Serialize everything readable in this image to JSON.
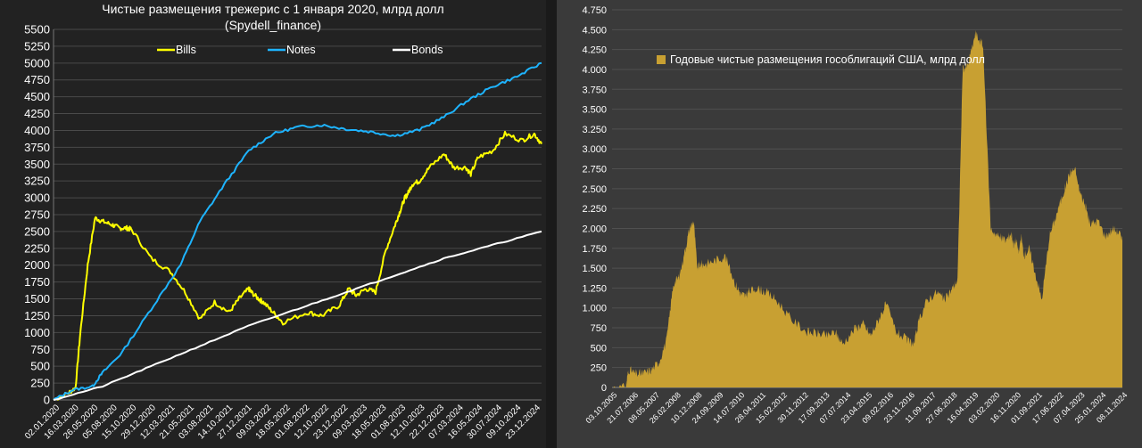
{
  "chart_data": [
    {
      "type": "line",
      "title": "Чистые размещения трежерис с 1 января 2020, млрд долл",
      "subtitle": "(Spydell_finance)",
      "xlabel": "",
      "ylabel": "",
      "ylim": [
        0,
        5500
      ],
      "y_ticks": [
        0,
        250,
        500,
        750,
        1000,
        1250,
        1500,
        1750,
        2000,
        2250,
        2500,
        2750,
        3000,
        3250,
        3500,
        3750,
        4000,
        4250,
        4500,
        4750,
        5000,
        5250,
        5500
      ],
      "x_tick_labels": [
        "02.01.2020",
        "16.03.2020",
        "26.05.2020",
        "05.08.2020",
        "15.10.2020",
        "29.12.2020",
        "12.03.2021",
        "21.05.2021",
        "03.08.2021",
        "14.10.2021",
        "27.12.2021",
        "09.03.2022",
        "18.05.2022",
        "01.08.2022",
        "12.10.2022",
        "23.12.2022",
        "09.03.2023",
        "18.05.2023",
        "01.08.2023",
        "12.10.2023",
        "22.12.2023",
        "07.03.2024",
        "16.05.2024",
        "30.07.2024",
        "09.10.2024",
        "23.12.2024"
      ],
      "legend_position": "top",
      "grid": true,
      "series": [
        {
          "name": "Bills",
          "color": "#ffff00",
          "x": [
            0,
            0.03,
            0.045,
            0.055,
            0.07,
            0.085,
            0.1,
            0.12,
            0.135,
            0.15,
            0.16,
            0.2,
            0.24,
            0.27,
            0.3,
            0.33,
            0.36,
            0.38,
            0.4,
            0.405,
            0.42,
            0.43,
            0.45,
            0.47,
            0.52,
            0.55,
            0.585,
            0.605,
            0.62,
            0.64,
            0.66,
            0.68,
            0.7,
            0.71,
            0.72,
            0.725,
            0.735,
            0.75,
            0.77,
            0.8,
            0.82,
            0.845,
            0.855,
            0.87,
            0.9,
            0.925,
            0.96,
            0.985,
            1.0
          ],
          "values": [
            0,
            100,
            180,
            1000,
            2000,
            2700,
            2650,
            2600,
            2550,
            2550,
            2530,
            2100,
            1900,
            1600,
            1200,
            1450,
            1300,
            1500,
            1650,
            1600,
            1500,
            1450,
            1300,
            1150,
            1300,
            1250,
            1400,
            1650,
            1550,
            1650,
            1600,
            2200,
            2600,
            2800,
            3000,
            3050,
            3200,
            3250,
            3450,
            3650,
            3450,
            3450,
            3350,
            3600,
            3700,
            3950,
            3850,
            3950,
            3800
          ]
        },
        {
          "name": "Notes",
          "color": "#1eb4ff",
          "x": [
            0,
            0.04,
            0.08,
            0.1,
            0.14,
            0.2,
            0.26,
            0.3,
            0.35,
            0.4,
            0.45,
            0.5,
            0.55,
            0.6,
            0.65,
            0.7,
            0.75,
            0.8,
            0.85,
            0.9,
            0.95,
            1.0
          ],
          "values": [
            0,
            150,
            200,
            400,
            700,
            1350,
            2000,
            2650,
            3200,
            3700,
            3950,
            4050,
            4080,
            4020,
            3980,
            3920,
            4010,
            4200,
            4450,
            4650,
            4800,
            5000
          ]
        },
        {
          "name": "Bonds",
          "color": "#ffffff",
          "x": [
            0,
            0.1,
            0.2,
            0.3,
            0.4,
            0.5,
            0.6,
            0.7,
            0.8,
            0.9,
            1.0
          ],
          "values": [
            0,
            200,
            500,
            800,
            1100,
            1350,
            1600,
            1850,
            2100,
            2300,
            2500
          ]
        }
      ]
    },
    {
      "type": "area",
      "title": "",
      "legend": "Годовые чистые размещения гособлигаций США, млрд долл",
      "legend_position": "top-left",
      "color": "#c8a032",
      "ylim": [
        0,
        4750
      ],
      "y_ticks": [
        0,
        250,
        500,
        750,
        1000,
        1250,
        1500,
        1750,
        2000,
        2250,
        2500,
        2750,
        3000,
        3250,
        3500,
        3750,
        4000,
        4250,
        4500,
        4750
      ],
      "x_tick_labels": [
        "03.10.2005",
        "21.07.2006",
        "08.05.2007",
        "26.02.2008",
        "10.12.2008",
        "24.09.2009",
        "14.07.2010",
        "28.04.2011",
        "15.02.2012",
        "30.11.2012",
        "17.09.2013",
        "07.07.2014",
        "23.04.2015",
        "09.02.2016",
        "23.11.2016",
        "11.09.2017",
        "27.06.2018",
        "16.04.2019",
        "03.02.2020",
        "16.11.2020",
        "01.09.2021",
        "17.06.2022",
        "07.04.2023",
        "25.01.2024",
        "08.11.2024"
      ],
      "x": [
        0.0,
        0.027,
        0.032,
        0.047,
        0.062,
        0.077,
        0.092,
        0.107,
        0.12,
        0.132,
        0.142,
        0.152,
        0.16,
        0.167,
        0.172,
        0.182,
        0.202,
        0.222,
        0.242,
        0.252,
        0.262,
        0.267,
        0.282,
        0.302,
        0.322,
        0.352,
        0.382,
        0.402,
        0.422,
        0.437,
        0.452,
        0.477,
        0.492,
        0.507,
        0.522,
        0.537,
        0.557,
        0.577,
        0.592,
        0.602,
        0.617,
        0.637,
        0.652,
        0.667,
        0.677,
        0.687,
        0.697,
        0.712,
        0.727,
        0.742,
        0.757,
        0.772,
        0.782,
        0.787,
        0.792,
        0.797,
        0.802,
        0.807,
        0.817,
        0.827,
        0.842,
        0.857,
        0.872,
        0.887,
        0.897,
        0.907,
        0.917,
        0.927,
        0.937,
        0.952,
        0.967,
        0.982,
        0.992,
        1.0
      ],
      "values": [
        0,
        0,
        230,
        170,
        180,
        220,
        320,
        600,
        1300,
        1400,
        1700,
        2000,
        2100,
        1500,
        1550,
        1550,
        1600,
        1650,
        1300,
        1180,
        1150,
        1200,
        1250,
        1200,
        1100,
        850,
        700,
        680,
        650,
        700,
        550,
        750,
        800,
        650,
        850,
        1050,
        700,
        600,
        550,
        850,
        1100,
        1200,
        1100,
        1250,
        1350,
        4000,
        4050,
        4450,
        4300,
        2000,
        1900,
        1850,
        1950,
        1800,
        1850,
        1700,
        1900,
        1650,
        1750,
        1500,
        1100,
        1900,
        2200,
        2500,
        2700,
        2750,
        2450,
        2300,
        2050,
        2100,
        1900,
        2000,
        1950,
        1900
      ]
    }
  ]
}
